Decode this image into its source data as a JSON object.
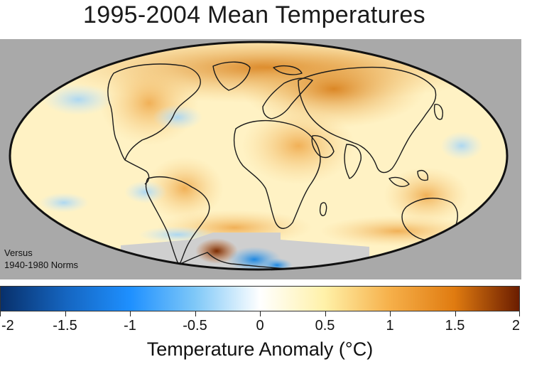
{
  "title": "1995-2004 Mean Temperatures",
  "note_line1": "Versus",
  "note_line2": "1940-1980 Norms",
  "colorbar": {
    "label": "Temperature Anomaly (°C)",
    "min": -2,
    "max": 2,
    "ticks": [
      "-2",
      "-1.5",
      "-1",
      "-0.5",
      "0",
      "0.5",
      "1",
      "1.5",
      "2"
    ],
    "colors": [
      "#08306b",
      "#1565c0",
      "#1e90ff",
      "#7fc8f8",
      "#ffffff",
      "#fff1a8",
      "#f6b04a",
      "#e07b10",
      "#6b1d00"
    ]
  },
  "colors": {
    "land_outline": "#1a1a1a",
    "ocean_base": "#fff2c4",
    "no_data": "#a9a9a9"
  }
}
